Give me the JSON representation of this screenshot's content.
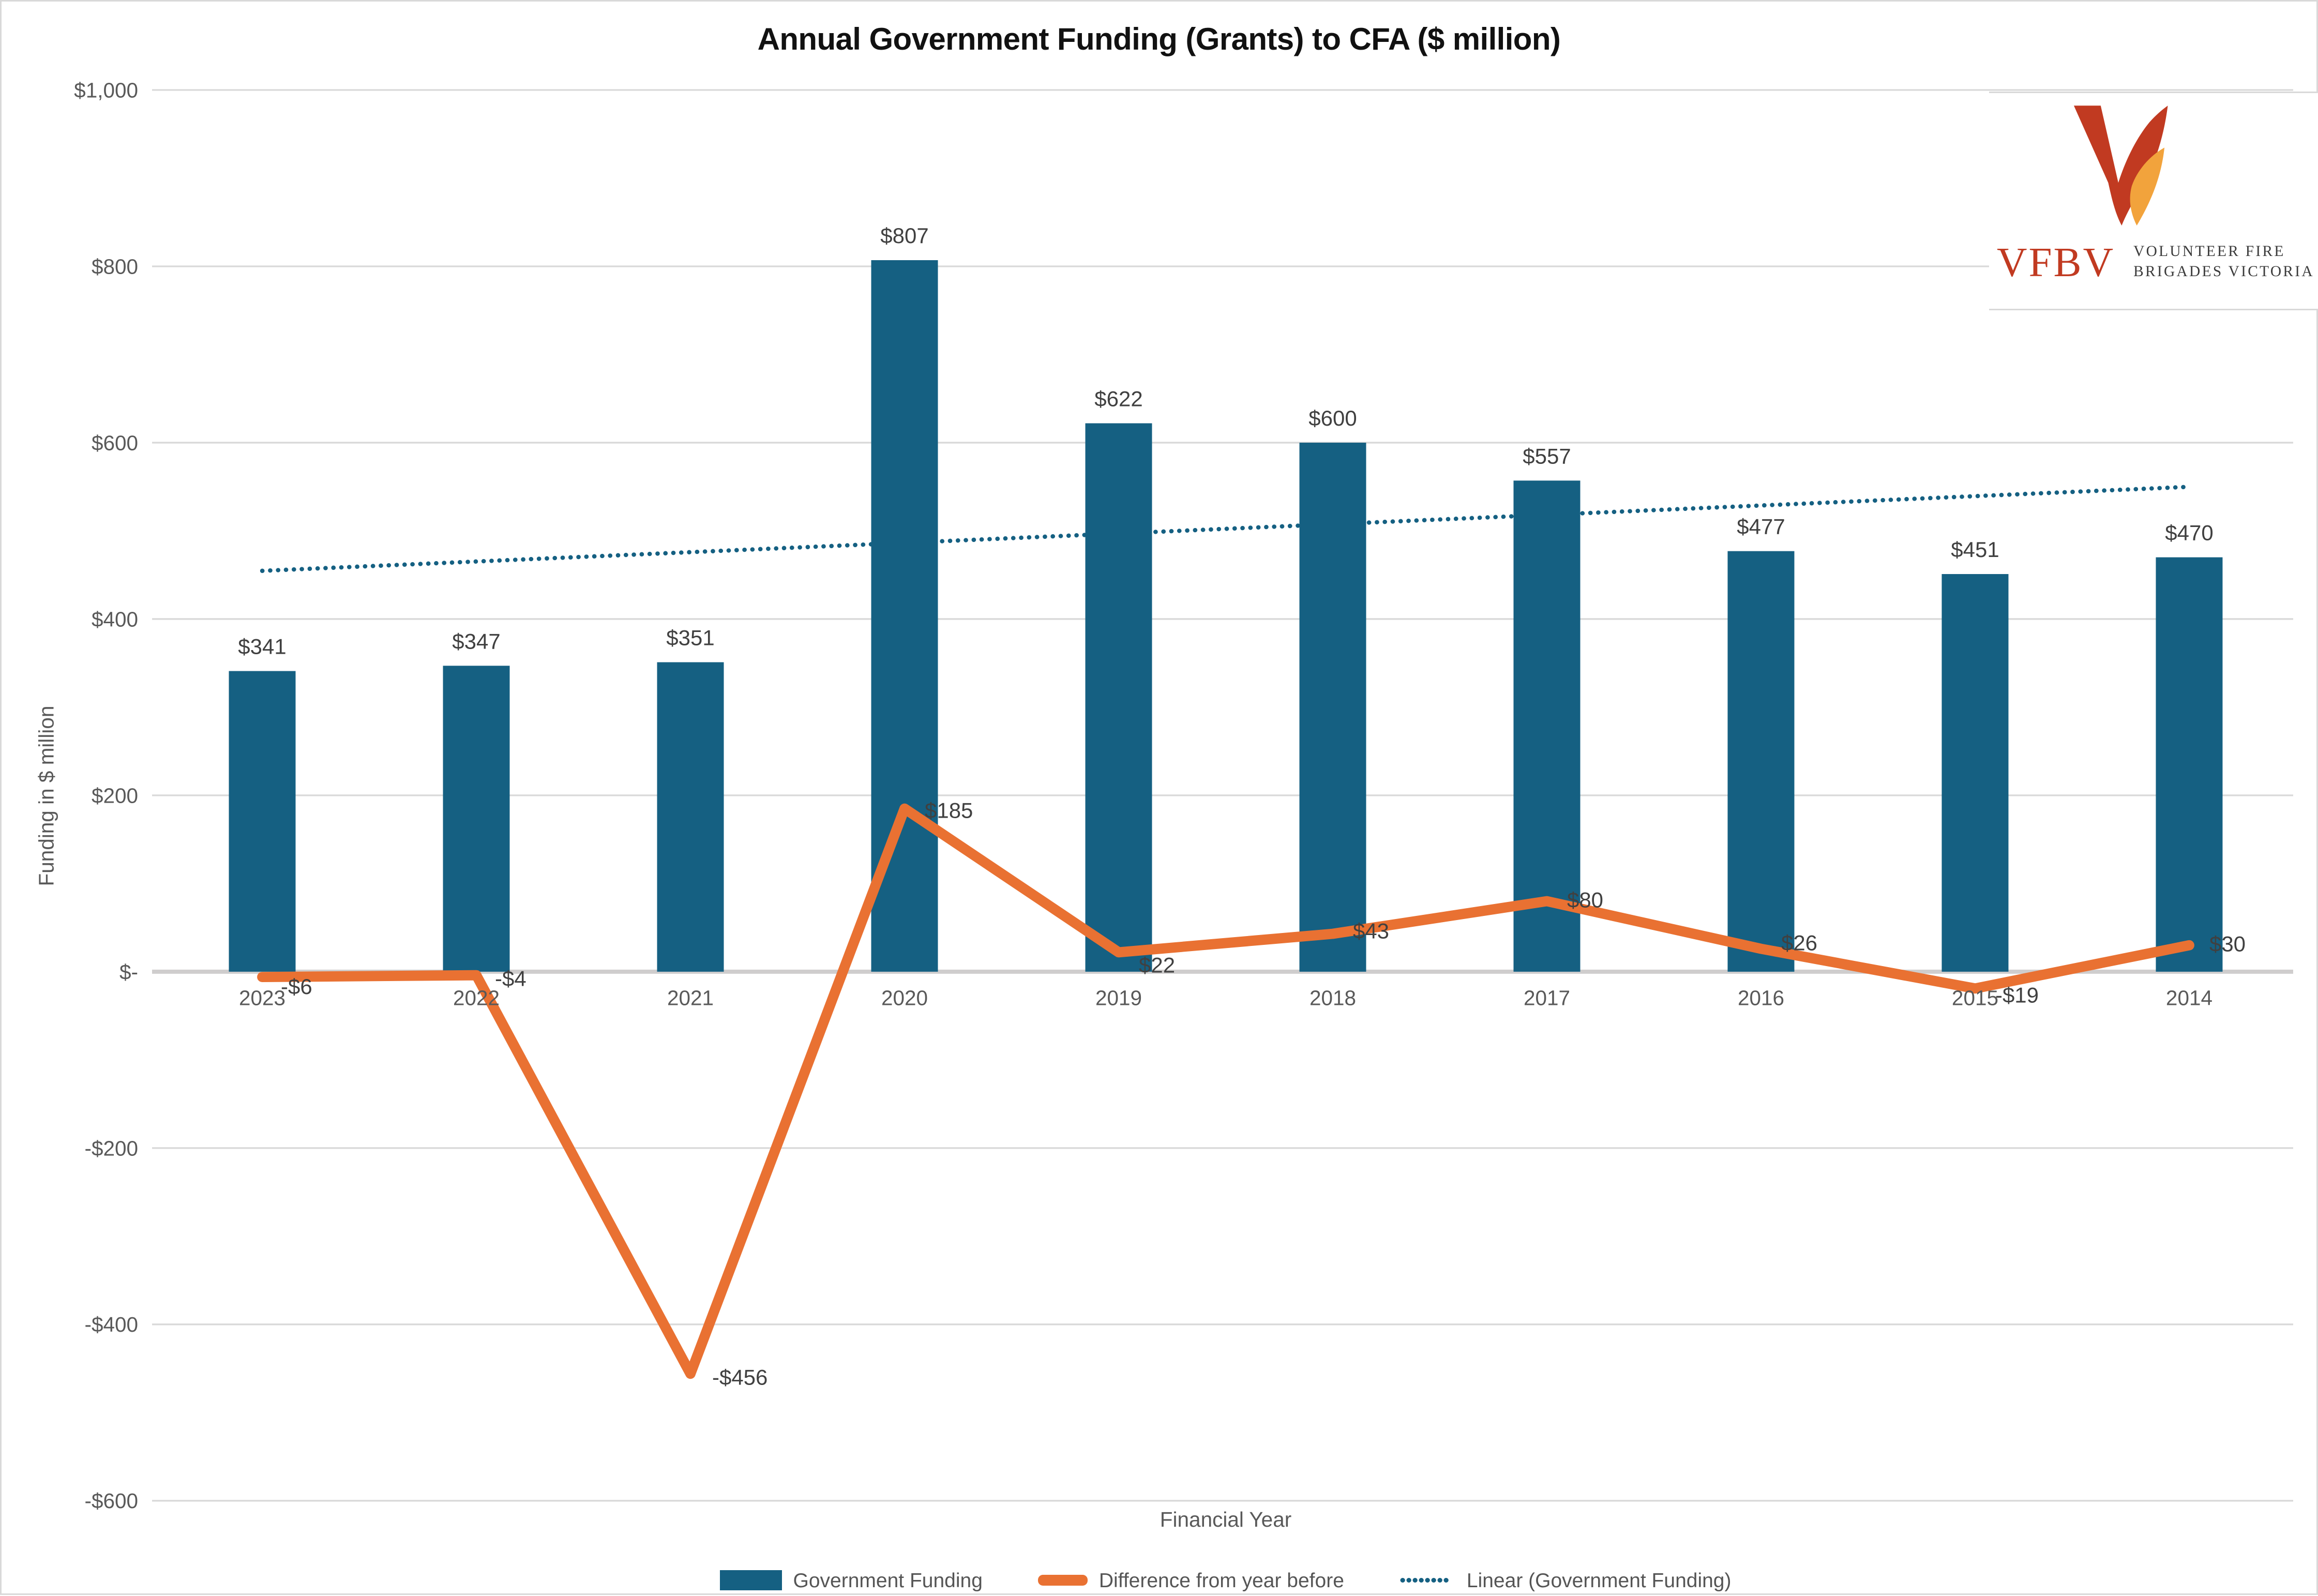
{
  "title": "Annual Government Funding (Grants) to CFA ($ million)",
  "logo": {
    "abbr": "VFBV",
    "org_line1": "VOLUNTEER FIRE",
    "org_line2": "BRIGADES VICTORIA",
    "red": "#C13A21",
    "orange": "#F2A33C"
  },
  "chart_data": {
    "type": "bar",
    "title": "Annual Government Funding (Grants) to CFA ($ million)",
    "categories": [
      "2023",
      "2022",
      "2021",
      "2020",
      "2019",
      "2018",
      "2017",
      "2016",
      "2015",
      "2014"
    ],
    "series": [
      {
        "name": "Government Funding",
        "type": "bar",
        "values": [
          341,
          347,
          351,
          807,
          622,
          600,
          557,
          477,
          451,
          470
        ],
        "labels": [
          "$341",
          "$347",
          "$351",
          "$807",
          "$622",
          "$600",
          "$557",
          "$477",
          "$451",
          "$470"
        ],
        "color": "#156082"
      },
      {
        "name": "Difference from year before",
        "type": "line",
        "values": [
          -6,
          -4,
          -456,
          185,
          22,
          43,
          80,
          26,
          -19,
          30
        ],
        "labels": [
          "-$6",
          "-$4",
          "-$456",
          "$185",
          "$22",
          "$43",
          "$80",
          "$26",
          "-$19",
          "$30"
        ],
        "color": "#E97132"
      },
      {
        "name": "Linear (Government Funding)",
        "type": "trendline",
        "of": "Government Funding",
        "style": "dotted",
        "color": "#156082"
      }
    ],
    "xlabel": "Financial Year",
    "ylabel": "Funding in $ million",
    "ylim": [
      -600,
      1000
    ],
    "ytick_step": 200,
    "ytick_labels": [
      "$1,000",
      "$800",
      "$600",
      "$400",
      "$200",
      "$-",
      "-$200",
      "-$400",
      "-$600"
    ],
    "grid": true,
    "legend_position": "bottom",
    "colors": {
      "gridline": "#D9D9D9",
      "zero_axis": "#CFCDCD",
      "tick_label": "#595959",
      "data_label": "#404040"
    }
  }
}
